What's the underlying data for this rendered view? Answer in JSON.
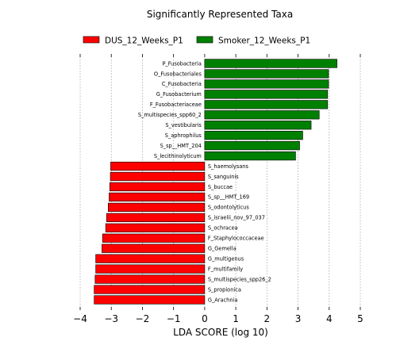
{
  "chart_data": {
    "type": "bar",
    "orientation": "horizontal",
    "title": "Significantly Represented Taxa",
    "xlabel": "LDA SCORE (log 10)",
    "ylabel": "",
    "xlim": [
      -4,
      5
    ],
    "xticks": [
      "−4",
      "−3",
      "−2",
      "−1",
      "0",
      "1",
      "2",
      "3",
      "4",
      "5"
    ],
    "grid": "vertical dotted",
    "legend_position": "top",
    "series": [
      {
        "name": "DUS_12_Weeks_P1",
        "color": "#ff0000",
        "categories": [
          "S_haemolysans",
          "S_sanguinis",
          "S_buccae",
          "S_sp__HMT_169",
          "S_odontolyticus",
          "S_israelii_nov_97_037",
          "S_ochracea",
          "F_Staphylococcaceae",
          "G_Gemella",
          "G_multigenus",
          "F_multifamily",
          "S_multispecies_spp26_2",
          "S_propionica",
          "G_Arachnia"
        ],
        "values": [
          -3.02,
          -3.03,
          -3.05,
          -3.07,
          -3.1,
          -3.15,
          -3.18,
          -3.28,
          -3.3,
          -3.5,
          -3.5,
          -3.52,
          -3.55,
          -3.55
        ]
      },
      {
        "name": "Smoker_12_Weeks_P1",
        "color": "#008000",
        "categories": [
          "P_Fusobacteria",
          "O_Fusobacteriales",
          "C_Fusobacteria",
          "G_Fusobacterium",
          "F_Fusobacteriaceae",
          "S_multispecies_spp60_2",
          "S_vestibularis",
          "S_aphrophilus",
          "S_sp__HMT_204",
          "S_lecithinolyticum"
        ],
        "values": [
          4.25,
          3.98,
          3.98,
          3.95,
          3.95,
          3.68,
          3.42,
          3.15,
          3.05,
          2.92
        ]
      }
    ]
  }
}
